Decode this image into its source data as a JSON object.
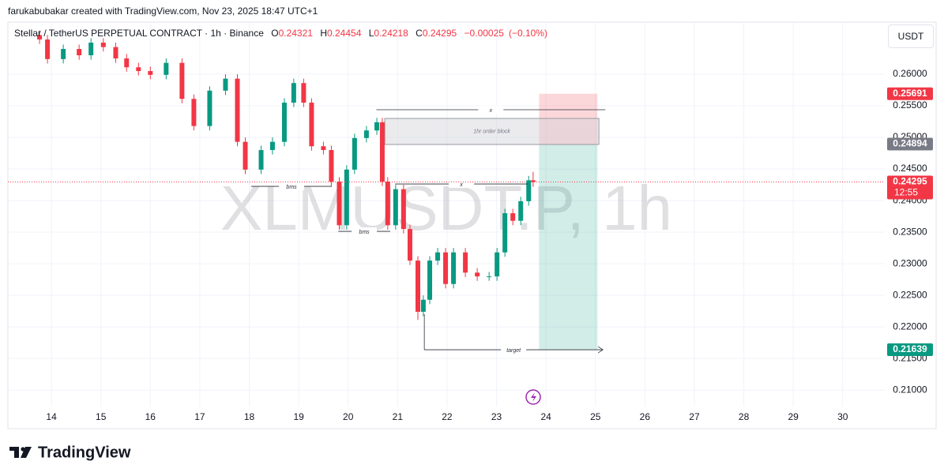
{
  "header": {
    "credit": "farukabubakar created with TradingView.com, Nov 23, 2025 18:47 UTC+1",
    "currency": "USDT"
  },
  "footer": {
    "brand": "TradingView"
  },
  "chart_data": {
    "type": "candlestick",
    "title": "Stellar / TetherUS PERPETUAL CONTRACT · 1h · Binance",
    "watermark": "XLMUSDT.P, 1h",
    "ohlc_labels": [
      "O",
      "H",
      "L",
      "C"
    ],
    "change": {
      "value": -0.00025,
      "label": "−0.00025"
    },
    "change_pct": {
      "value": -0.1,
      "label": "(−0.10%)"
    },
    "countdown": "12:55",
    "up_color": "#089981",
    "down_color": "#f23645",
    "x": [
      13.76,
      13.92,
      14.24,
      14.56,
      14.8,
      15.05,
      15.3,
      15.52,
      15.76,
      16.0,
      16.32,
      16.64,
      16.88,
      17.2,
      17.52,
      17.76,
      17.92,
      18.24,
      18.47,
      18.71,
      18.9,
      19.1,
      19.26,
      19.5,
      19.66,
      19.82,
      19.97,
      20.13,
      20.37,
      20.58,
      20.69,
      20.8,
      20.96,
      21.12,
      21.25,
      21.41,
      21.52,
      21.65,
      21.81,
      21.97,
      22.13,
      22.37,
      22.61,
      22.85,
      23.01,
      23.17,
      23.33,
      23.49,
      23.65,
      23.74
    ],
    "open": [
      0.2662,
      0.2655,
      0.2624,
      0.264,
      0.263,
      0.265,
      0.2643,
      0.2625,
      0.2611,
      0.2605,
      0.2599,
      0.2618,
      0.2561,
      0.2518,
      0.2574,
      0.2593,
      0.2493,
      0.2449,
      0.248,
      0.2493,
      0.2555,
      0.2586,
      0.2555,
      0.2486,
      0.248,
      0.243,
      0.2361,
      0.2449,
      0.2499,
      0.2511,
      0.2524,
      0.243,
      0.2361,
      0.2418,
      0.2355,
      0.2305,
      0.2224,
      0.2243,
      0.2305,
      0.2318,
      0.2268,
      0.2318,
      0.2286,
      0.228,
      0.228,
      0.2318,
      0.238,
      0.2368,
      0.2399,
      0.24321
    ],
    "high": [
      0.2669,
      0.2662,
      0.2647,
      0.2647,
      0.2657,
      0.2657,
      0.265,
      0.2632,
      0.2618,
      0.2612,
      0.2625,
      0.2625,
      0.2568,
      0.2581,
      0.26,
      0.26,
      0.25,
      0.2487,
      0.25,
      0.2562,
      0.2593,
      0.2593,
      0.2562,
      0.2493,
      0.2487,
      0.2437,
      0.2456,
      0.2506,
      0.2518,
      0.2531,
      0.2531,
      0.2437,
      0.2425,
      0.2425,
      0.2362,
      0.2312,
      0.225,
      0.2312,
      0.2325,
      0.2325,
      0.2325,
      0.2325,
      0.2293,
      0.2287,
      0.2325,
      0.2387,
      0.2387,
      0.2406,
      0.2439,
      0.24454
    ],
    "low": [
      0.2648,
      0.2617,
      0.2617,
      0.2623,
      0.2623,
      0.2636,
      0.2618,
      0.2604,
      0.2598,
      0.2592,
      0.2592,
      0.2554,
      0.2511,
      0.2511,
      0.2567,
      0.2486,
      0.2442,
      0.2442,
      0.2473,
      0.2486,
      0.2548,
      0.2548,
      0.2479,
      0.2473,
      0.2423,
      0.2354,
      0.2354,
      0.2442,
      0.2492,
      0.2504,
      0.2423,
      0.2354,
      0.2354,
      0.2348,
      0.2298,
      0.2211,
      0.2217,
      0.2236,
      0.2298,
      0.2261,
      0.2261,
      0.2279,
      0.2273,
      0.2273,
      0.2273,
      0.2311,
      0.2361,
      0.2361,
      0.2392,
      0.24218
    ],
    "close": [
      0.2655,
      0.2624,
      0.264,
      0.263,
      0.265,
      0.2643,
      0.2625,
      0.2611,
      0.2605,
      0.2599,
      0.2618,
      0.2561,
      0.2518,
      0.2574,
      0.2593,
      0.2493,
      0.2449,
      0.248,
      0.2493,
      0.2555,
      0.2586,
      0.2555,
      0.2486,
      0.248,
      0.243,
      0.2361,
      0.2449,
      0.2499,
      0.2511,
      0.2524,
      0.243,
      0.2361,
      0.2418,
      0.2355,
      0.2305,
      0.2224,
      0.2243,
      0.2305,
      0.2318,
      0.2268,
      0.2318,
      0.2286,
      0.228,
      0.228,
      0.2318,
      0.238,
      0.2368,
      0.2399,
      0.24321,
      0.24295
    ],
    "xlim": [
      13.12,
      30.85
    ],
    "xticks": [
      14,
      15,
      16,
      17,
      18,
      19,
      20,
      21,
      22,
      23,
      24,
      25,
      26,
      27,
      28,
      29,
      30
    ],
    "ylim": [
      0.2074,
      0.268
    ],
    "yticks": [
      {
        "value": 0.21,
        "label": "0.21000"
      },
      {
        "value": 0.215,
        "label": "0.21500"
      },
      {
        "value": 0.22,
        "label": "0.22000"
      },
      {
        "value": 0.225,
        "label": "0.22500"
      },
      {
        "value": 0.23,
        "label": "0.23000"
      },
      {
        "value": 0.235,
        "label": "0.23500"
      },
      {
        "value": 0.24,
        "label": "0.24000"
      },
      {
        "value": 0.245,
        "label": "0.24500"
      },
      {
        "value": 0.25,
        "label": "0.25000"
      },
      {
        "value": 0.255,
        "label": "0.25500"
      },
      {
        "value": 0.26,
        "label": "0.26000"
      }
    ],
    "grid": true,
    "position": {
      "entry": 0.24894,
      "stop": 0.25691,
      "target": 0.21639,
      "x": [
        23.86,
        25.04
      ]
    },
    "order_block": {
      "label": "1hr order block",
      "top": 0.253,
      "bottom": 0.24888,
      "x": [
        20.74,
        25.07
      ]
    },
    "annotations": [
      {
        "label": "bms",
        "price": 0.24225,
        "x": [
          18.04,
          19.67
        ]
      },
      {
        "label": "bms",
        "price": 0.23513,
        "x": [
          19.8,
          20.85
        ]
      },
      {
        "label": "x",
        "price": 0.25438,
        "x": [
          20.57,
          25.2
        ]
      },
      {
        "label": "x",
        "price": 0.24263,
        "x": [
          20.95,
          23.63
        ]
      },
      {
        "label": "target",
        "price": 0.21639,
        "x": [
          21.54,
          25.15
        ]
      }
    ]
  }
}
